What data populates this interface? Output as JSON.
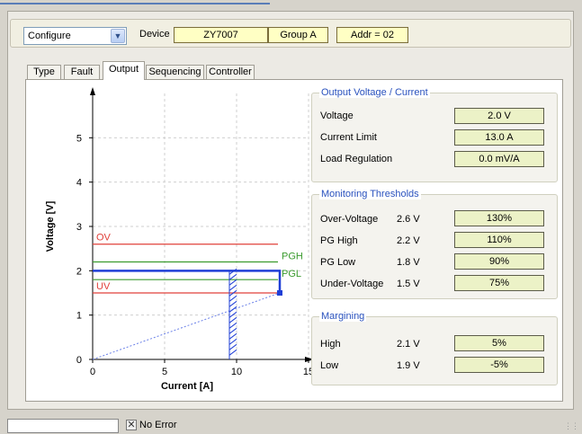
{
  "toolbar": {
    "mode_value": "Configure",
    "device_label": "Device",
    "device_name": "ZY7007",
    "group": "Group A",
    "address": "Addr = 02"
  },
  "tabs": [
    {
      "label": "Type"
    },
    {
      "label": "Fault"
    },
    {
      "label": "Output",
      "active": true
    },
    {
      "label": "Sequencing"
    },
    {
      "label": "Controller"
    }
  ],
  "output_group": {
    "title": "Output Voltage / Current",
    "rows": [
      {
        "label": "Voltage",
        "value": "2.0 V"
      },
      {
        "label": "Current Limit",
        "value": "13.0 A"
      },
      {
        "label": "Load Regulation",
        "value": "0.0 mV/A"
      }
    ]
  },
  "monitor_group": {
    "title": "Monitoring Thresholds",
    "rows": [
      {
        "label": "Over-Voltage",
        "volts": "2.6 V",
        "value": "130%"
      },
      {
        "label": "PG High",
        "volts": "2.2 V",
        "value": "110%"
      },
      {
        "label": "PG Low",
        "volts": "1.8 V",
        "value": "90%"
      },
      {
        "label": "Under-Voltage",
        "volts": "1.5 V",
        "value": "75%"
      }
    ]
  },
  "margin_group": {
    "title": "Margining",
    "rows": [
      {
        "label": "High",
        "volts": "2.1 V",
        "value": "5%"
      },
      {
        "label": "Low",
        "volts": "1.9 V",
        "value": "-5%"
      }
    ]
  },
  "status": {
    "text": "No Error"
  },
  "colors": {
    "threshold_red": "#e0403a",
    "threshold_green": "#3a9b2e",
    "output_blue": "#1f3fd6",
    "group_title": "#2a52be"
  },
  "chart_data": {
    "type": "line",
    "xlabel": "Current [A]",
    "ylabel": "Voltage [V]",
    "xlim": [
      0,
      15
    ],
    "ylim": [
      0,
      6
    ],
    "xticks": [
      0,
      5,
      10,
      15
    ],
    "yticks": [
      0,
      1,
      2,
      3,
      4,
      5
    ],
    "grid": true,
    "thresholds": [
      {
        "name": "OV",
        "value": 2.6,
        "color": "red",
        "label_side": "left"
      },
      {
        "name": "PGH",
        "value": 2.2,
        "color": "green",
        "label_side": "right"
      },
      {
        "name": "PGL",
        "value": 1.8,
        "color": "green",
        "label_side": "right"
      },
      {
        "name": "UV",
        "value": 1.5,
        "color": "red",
        "label_side": "left"
      }
    ],
    "output_voltage": 2.0,
    "current_limit": 13.0,
    "foldback_current": 9.5,
    "load_line": {
      "x": [
        0,
        13.0
      ],
      "y": [
        0,
        1.5
      ]
    }
  }
}
